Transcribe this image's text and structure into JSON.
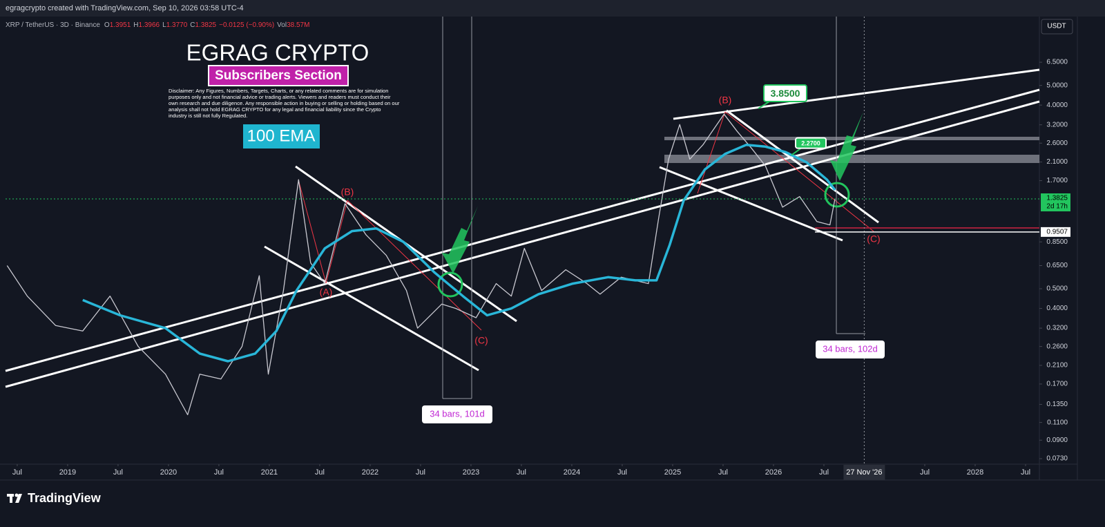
{
  "header": "egragcrypto created with TradingView.com, Sep 10, 2026 03:58 UTC-4",
  "footer_logo": "TradingView",
  "chart_data": {
    "type": "line",
    "symbol": "XRP / TetherUS · 3D · Binance",
    "ohlc": [
      {
        "key": "O",
        "value": "1.3951"
      },
      {
        "key": "H",
        "value": "1.3966"
      },
      {
        "key": "L",
        "value": "1.3770"
      },
      {
        "key": "C",
        "value": "1.3825"
      }
    ],
    "change": "−0.0125 (−0.90%)",
    "volume": {
      "key": "Vol",
      "value": "38.57M"
    },
    "currency": "USDT",
    "title": "EGRAG CRYPTO",
    "subtitle": "Subscribers Section",
    "disclaimer": "Disclaimer: Any Figures, Numbers, Targets, Charts, or any related comments are for simulation purposes only and not financial advice or trading alerts. Viewers and readers must conduct their own research and due diligence. Any responsible action in buying or selling or holding based on our analysis shall not hold EGRAG CRYPTO for any legal and financial liability since the Crypto industry is still not fully Regulated.",
    "log_scale": true,
    "xlim": [
      2018.384,
      2028.637
    ],
    "ylim": [
      0.0686,
      10.9
    ],
    "xticks": [
      {
        "value": 2018.5,
        "label": "Jul"
      },
      {
        "value": 2019,
        "label": "2019"
      },
      {
        "value": 2019.5,
        "label": "Jul"
      },
      {
        "value": 2020,
        "label": "2020"
      },
      {
        "value": 2020.5,
        "label": "Jul"
      },
      {
        "value": 2021,
        "label": "2021"
      },
      {
        "value": 2021.5,
        "label": "Jul"
      },
      {
        "value": 2022,
        "label": "2022"
      },
      {
        "value": 2022.5,
        "label": "Jul"
      },
      {
        "value": 2023,
        "label": "2023"
      },
      {
        "value": 2023.5,
        "label": "Jul"
      },
      {
        "value": 2024,
        "label": "2024"
      },
      {
        "value": 2024.5,
        "label": "Jul"
      },
      {
        "value": 2025,
        "label": "2025"
      },
      {
        "value": 2025.5,
        "label": "Jul"
      },
      {
        "value": 2026,
        "label": "2026"
      },
      {
        "value": 2026.5,
        "label": "Jul"
      },
      {
        "value": 2027.5,
        "label": "Jul"
      },
      {
        "value": 2028,
        "label": "2028"
      },
      {
        "value": 2028.5,
        "label": "Jul"
      }
    ],
    "yticks": [
      {
        "value": 6.5,
        "label": "6.5000"
      },
      {
        "value": 5,
        "label": "5.0000"
      },
      {
        "value": 4,
        "label": "4.0000"
      },
      {
        "value": 3.2,
        "label": "3.2000"
      },
      {
        "value": 2.6,
        "label": "2.6000"
      },
      {
        "value": 2.1,
        "label": "2.1000"
      },
      {
        "value": 1.7,
        "label": "1.7000"
      },
      {
        "value": 0.85,
        "label": "0.8500"
      },
      {
        "value": 0.65,
        "label": "0.6500"
      },
      {
        "value": 0.5,
        "label": "0.5000"
      },
      {
        "value": 0.4,
        "label": "0.4000"
      },
      {
        "value": 0.32,
        "label": "0.3200"
      },
      {
        "value": 0.26,
        "label": "0.2600"
      },
      {
        "value": 0.21,
        "label": "0.2100"
      },
      {
        "value": 0.17,
        "label": "0.1700"
      },
      {
        "value": 0.135,
        "label": "0.1350"
      },
      {
        "value": 0.11,
        "label": "0.1100"
      },
      {
        "value": 0.09,
        "label": "0.0900"
      },
      {
        "value": 0.073,
        "label": "0.0730"
      }
    ],
    "crosshair": {
      "value": 2026.9,
      "label": "27 Nov '26"
    },
    "series": [
      {
        "name": "XRP / TetherUS",
        "color": "#c9c9d1",
        "x": [
          2018.4,
          2018.6,
          2018.88,
          2019.15,
          2019.42,
          2019.7,
          2019.97,
          2020.19,
          2020.31,
          2020.52,
          2020.73,
          2020.9,
          2020.99,
          2021.14,
          2021.29,
          2021.41,
          2021.55,
          2021.75,
          2021.96,
          2022.16,
          2022.36,
          2022.47,
          2022.71,
          2022.85,
          2023.05,
          2023.25,
          2023.4,
          2023.53,
          2023.7,
          2023.94,
          2024.15,
          2024.28,
          2024.49,
          2024.76,
          2024.86,
          2024.96,
          2025.07,
          2025.17,
          2025.3,
          2025.51,
          2025.64,
          2025.78,
          2025.92,
          2026.09,
          2026.26,
          2026.43,
          2026.56,
          2026.61
        ],
        "values": [
          0.65,
          0.46,
          0.33,
          0.31,
          0.46,
          0.26,
          0.19,
          0.12,
          0.19,
          0.18,
          0.26,
          0.58,
          0.19,
          0.49,
          1.72,
          0.67,
          0.53,
          1.31,
          0.92,
          0.73,
          0.49,
          0.32,
          0.42,
          0.4,
          0.36,
          0.53,
          0.46,
          0.79,
          0.49,
          0.62,
          0.53,
          0.47,
          0.57,
          0.53,
          1.1,
          2.17,
          3.21,
          2.17,
          2.55,
          3.61,
          2.97,
          2.46,
          2.01,
          1.26,
          1.42,
          1.07,
          1.03,
          1.3825
        ]
      },
      {
        "name": "100 EMA",
        "color": "#29b6d8",
        "x": [
          2019.15,
          2019.52,
          2019.97,
          2020.31,
          2020.59,
          2020.86,
          2021.07,
          2021.27,
          2021.55,
          2021.82,
          2022.06,
          2022.33,
          2022.64,
          2022.92,
          2023.16,
          2023.4,
          2023.67,
          2024.01,
          2024.36,
          2024.63,
          2024.84,
          2024.97,
          2025.11,
          2025.32,
          2025.52,
          2025.73,
          2025.92,
          2026.12,
          2026.33,
          2026.53,
          2026.61
        ],
        "values": [
          0.44,
          0.37,
          0.32,
          0.24,
          0.22,
          0.24,
          0.31,
          0.49,
          0.79,
          0.96,
          0.99,
          0.85,
          0.6,
          0.46,
          0.37,
          0.4,
          0.47,
          0.53,
          0.57,
          0.55,
          0.55,
          0.82,
          1.36,
          1.93,
          2.3,
          2.55,
          2.5,
          2.35,
          2.09,
          1.72,
          1.53
        ]
      }
    ],
    "price_line": {
      "value": 1.3825,
      "label": "1.3825",
      "countdown": "2d 17h",
      "color": "#22c55e"
    },
    "levels": [
      {
        "value": 0.9507,
        "label": "0.9507"
      }
    ],
    "targets": [
      {
        "value": 3.85,
        "label": "3.8500"
      },
      {
        "value": 2.27,
        "label": "2.2700"
      }
    ],
    "wave_labels": [
      "(A)",
      "(B)",
      "(C)",
      "(B)",
      "(C)"
    ],
    "measures": [
      "34 bars, 101d",
      "34 bars, 102d"
    ]
  }
}
